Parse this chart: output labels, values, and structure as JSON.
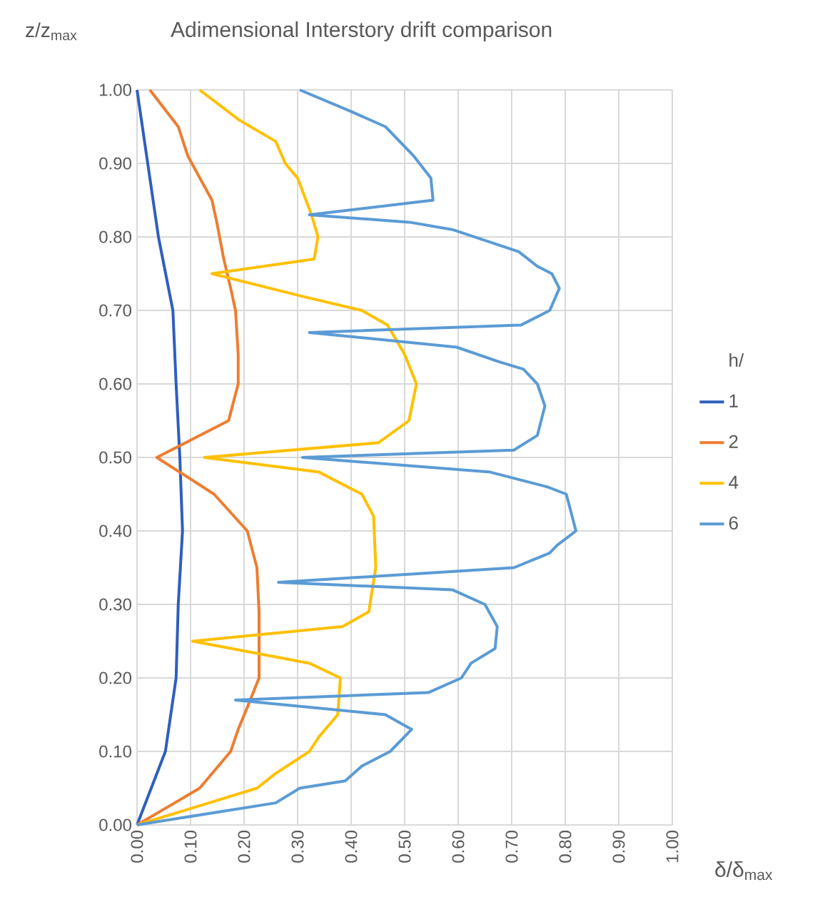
{
  "chart_data": {
    "type": "line",
    "title": "Adimensional Interstory drift comparison",
    "xlabel": "δ/δ$_{max}$",
    "ylabel": "z/z$_{max}$",
    "legend_title": "h/",
    "xlim": [
      0,
      1
    ],
    "ylim": [
      0,
      1
    ],
    "xticks": [
      {
        "value": 0,
        "label": "0.00"
      },
      {
        "value": 0.1,
        "label": "0.10"
      },
      {
        "value": 0.2,
        "label": "0.20"
      },
      {
        "value": 0.3,
        "label": "0.30"
      },
      {
        "value": 0.4,
        "label": "0.40"
      },
      {
        "value": 0.5,
        "label": "0.50"
      },
      {
        "value": 0.6,
        "label": "0.60"
      },
      {
        "value": 0.7,
        "label": "0.70"
      },
      {
        "value": 0.8,
        "label": "0.80"
      },
      {
        "value": 0.9,
        "label": "0.90"
      },
      {
        "value": 1,
        "label": "1.00"
      }
    ],
    "yticks": [
      {
        "value": 0,
        "label": "0.00"
      },
      {
        "value": 0.1,
        "label": "0.10"
      },
      {
        "value": 0.2,
        "label": "0.20"
      },
      {
        "value": 0.3,
        "label": "0.30"
      },
      {
        "value": 0.4,
        "label": "0.40"
      },
      {
        "value": 0.5,
        "label": "0.50"
      },
      {
        "value": 0.6,
        "label": "0.60"
      },
      {
        "value": 0.7,
        "label": "0.70"
      },
      {
        "value": 0.8,
        "label": "0.80"
      },
      {
        "value": 0.9,
        "label": "0.90"
      },
      {
        "value": 1,
        "label": "1.00"
      }
    ],
    "grid": true,
    "legend": "right",
    "marker": "none",
    "line_style": "solid",
    "series": [
      {
        "name": "1",
        "color": "#2e5fbd",
        "x": [
          0.0,
          0.02,
          0.04,
          0.067,
          0.073,
          0.08,
          0.085,
          0.077,
          0.073,
          0.053,
          0.0
        ],
        "values": [
          1.0,
          0.9,
          0.8,
          0.7,
          0.6,
          0.5,
          0.4,
          0.3,
          0.2,
          0.1,
          0.0
        ]
      },
      {
        "name": "2",
        "color": "#ed7d31",
        "x": [
          0.024,
          0.077,
          0.095,
          0.14,
          0.149,
          0.162,
          0.175,
          0.184,
          0.189,
          0.189,
          0.171,
          0.037,
          0.144,
          0.206,
          0.224,
          0.228,
          0.228,
          0.206,
          0.189,
          0.175,
          0.117,
          0.0
        ],
        "values": [
          1.0,
          0.95,
          0.91,
          0.85,
          0.82,
          0.77,
          0.73,
          0.7,
          0.64,
          0.6,
          0.55,
          0.5,
          0.45,
          0.4,
          0.35,
          0.29,
          0.2,
          0.16,
          0.13,
          0.1,
          0.05,
          0.0
        ]
      },
      {
        "name": "4",
        "color": "#ffc000",
        "x": [
          0.117,
          0.189,
          0.259,
          0.277,
          0.3,
          0.326,
          0.338,
          0.331,
          0.14,
          0.304,
          0.42,
          0.468,
          0.5,
          0.522,
          0.508,
          0.451,
          0.126,
          0.34,
          0.42,
          0.442,
          0.446,
          0.433,
          0.384,
          0.104,
          0.322,
          0.38,
          0.375,
          0.34,
          0.322,
          0.259,
          0.224,
          0.0
        ],
        "values": [
          1.0,
          0.96,
          0.93,
          0.9,
          0.88,
          0.83,
          0.8,
          0.77,
          0.75,
          0.72,
          0.7,
          0.68,
          0.64,
          0.6,
          0.55,
          0.52,
          0.5,
          0.48,
          0.45,
          0.42,
          0.35,
          0.29,
          0.27,
          0.25,
          0.22,
          0.2,
          0.15,
          0.12,
          0.1,
          0.07,
          0.05,
          0.0
        ]
      },
      {
        "name": "6",
        "color": "#5b9bd5",
        "x": [
          0.304,
          0.402,
          0.464,
          0.517,
          0.549,
          0.553,
          0.322,
          0.509,
          0.589,
          0.713,
          0.748,
          0.775,
          0.789,
          0.771,
          0.717,
          0.322,
          0.597,
          0.677,
          0.722,
          0.748,
          0.762,
          0.748,
          0.704,
          0.309,
          0.66,
          0.766,
          0.802,
          0.82,
          0.784,
          0.771,
          0.704,
          0.264,
          0.589,
          0.65,
          0.673,
          0.669,
          0.624,
          0.606,
          0.544,
          0.184,
          0.464,
          0.513,
          0.473,
          0.42,
          0.389,
          0.304,
          0.259,
          0.0
        ],
        "values": [
          1.0,
          0.97,
          0.95,
          0.91,
          0.88,
          0.85,
          0.83,
          0.82,
          0.81,
          0.78,
          0.76,
          0.75,
          0.73,
          0.7,
          0.68,
          0.67,
          0.65,
          0.63,
          0.62,
          0.6,
          0.57,
          0.53,
          0.51,
          0.5,
          0.48,
          0.46,
          0.45,
          0.4,
          0.38,
          0.37,
          0.35,
          0.33,
          0.32,
          0.3,
          0.27,
          0.24,
          0.22,
          0.2,
          0.18,
          0.17,
          0.15,
          0.13,
          0.1,
          0.08,
          0.06,
          0.05,
          0.03,
          0.0
        ]
      }
    ]
  }
}
